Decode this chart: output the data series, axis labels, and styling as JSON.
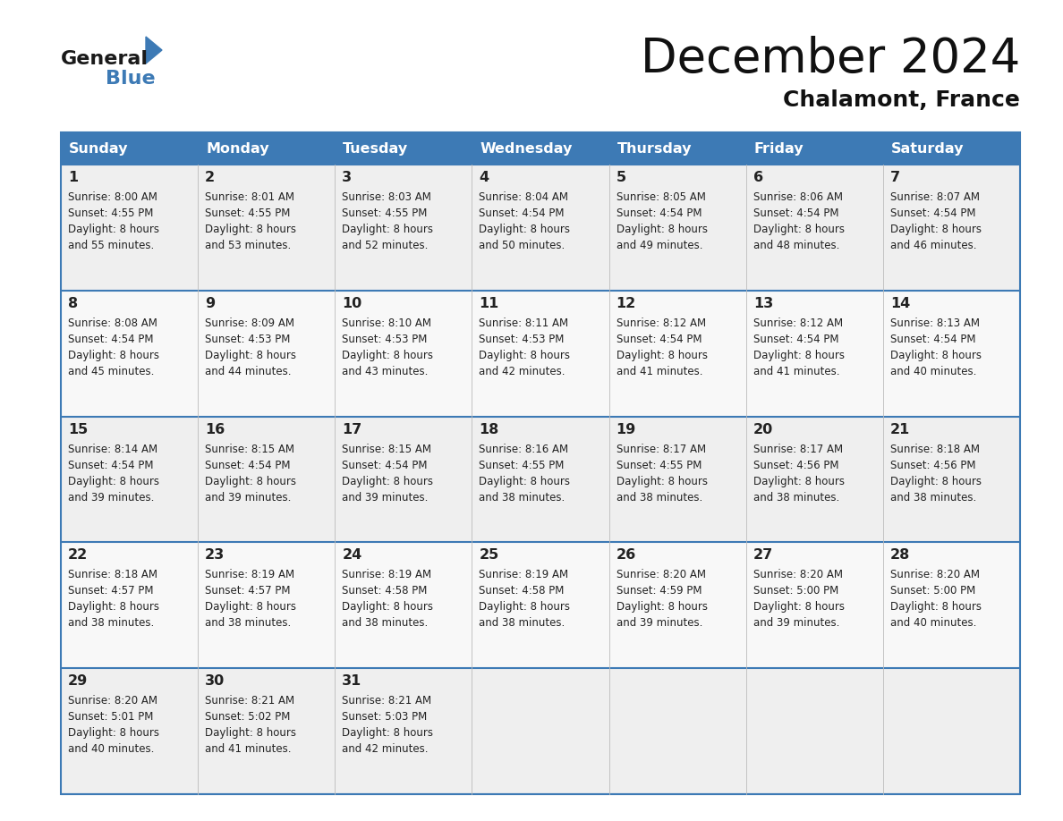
{
  "title": "December 2024",
  "subtitle": "Chalamont, France",
  "header_color": "#3d7ab5",
  "header_text_color": "#ffffff",
  "days_of_week": [
    "Sunday",
    "Monday",
    "Tuesday",
    "Wednesday",
    "Thursday",
    "Friday",
    "Saturday"
  ],
  "calendar": [
    [
      {
        "day": 1,
        "sunrise": "8:00 AM",
        "sunset": "4:55 PM",
        "daylight": "8 hours and 55 minutes."
      },
      {
        "day": 2,
        "sunrise": "8:01 AM",
        "sunset": "4:55 PM",
        "daylight": "8 hours and 53 minutes."
      },
      {
        "day": 3,
        "sunrise": "8:03 AM",
        "sunset": "4:55 PM",
        "daylight": "8 hours and 52 minutes."
      },
      {
        "day": 4,
        "sunrise": "8:04 AM",
        "sunset": "4:54 PM",
        "daylight": "8 hours and 50 minutes."
      },
      {
        "day": 5,
        "sunrise": "8:05 AM",
        "sunset": "4:54 PM",
        "daylight": "8 hours and 49 minutes."
      },
      {
        "day": 6,
        "sunrise": "8:06 AM",
        "sunset": "4:54 PM",
        "daylight": "8 hours and 48 minutes."
      },
      {
        "day": 7,
        "sunrise": "8:07 AM",
        "sunset": "4:54 PM",
        "daylight": "8 hours and 46 minutes."
      }
    ],
    [
      {
        "day": 8,
        "sunrise": "8:08 AM",
        "sunset": "4:54 PM",
        "daylight": "8 hours and 45 minutes."
      },
      {
        "day": 9,
        "sunrise": "8:09 AM",
        "sunset": "4:53 PM",
        "daylight": "8 hours and 44 minutes."
      },
      {
        "day": 10,
        "sunrise": "8:10 AM",
        "sunset": "4:53 PM",
        "daylight": "8 hours and 43 minutes."
      },
      {
        "day": 11,
        "sunrise": "8:11 AM",
        "sunset": "4:53 PM",
        "daylight": "8 hours and 42 minutes."
      },
      {
        "day": 12,
        "sunrise": "8:12 AM",
        "sunset": "4:54 PM",
        "daylight": "8 hours and 41 minutes."
      },
      {
        "day": 13,
        "sunrise": "8:12 AM",
        "sunset": "4:54 PM",
        "daylight": "8 hours and 41 minutes."
      },
      {
        "day": 14,
        "sunrise": "8:13 AM",
        "sunset": "4:54 PM",
        "daylight": "8 hours and 40 minutes."
      }
    ],
    [
      {
        "day": 15,
        "sunrise": "8:14 AM",
        "sunset": "4:54 PM",
        "daylight": "8 hours and 39 minutes."
      },
      {
        "day": 16,
        "sunrise": "8:15 AM",
        "sunset": "4:54 PM",
        "daylight": "8 hours and 39 minutes."
      },
      {
        "day": 17,
        "sunrise": "8:15 AM",
        "sunset": "4:54 PM",
        "daylight": "8 hours and 39 minutes."
      },
      {
        "day": 18,
        "sunrise": "8:16 AM",
        "sunset": "4:55 PM",
        "daylight": "8 hours and 38 minutes."
      },
      {
        "day": 19,
        "sunrise": "8:17 AM",
        "sunset": "4:55 PM",
        "daylight": "8 hours and 38 minutes."
      },
      {
        "day": 20,
        "sunrise": "8:17 AM",
        "sunset": "4:56 PM",
        "daylight": "8 hours and 38 minutes."
      },
      {
        "day": 21,
        "sunrise": "8:18 AM",
        "sunset": "4:56 PM",
        "daylight": "8 hours and 38 minutes."
      }
    ],
    [
      {
        "day": 22,
        "sunrise": "8:18 AM",
        "sunset": "4:57 PM",
        "daylight": "8 hours and 38 minutes."
      },
      {
        "day": 23,
        "sunrise": "8:19 AM",
        "sunset": "4:57 PM",
        "daylight": "8 hours and 38 minutes."
      },
      {
        "day": 24,
        "sunrise": "8:19 AM",
        "sunset": "4:58 PM",
        "daylight": "8 hours and 38 minutes."
      },
      {
        "day": 25,
        "sunrise": "8:19 AM",
        "sunset": "4:58 PM",
        "daylight": "8 hours and 38 minutes."
      },
      {
        "day": 26,
        "sunrise": "8:20 AM",
        "sunset": "4:59 PM",
        "daylight": "8 hours and 39 minutes."
      },
      {
        "day": 27,
        "sunrise": "8:20 AM",
        "sunset": "5:00 PM",
        "daylight": "8 hours and 39 minutes."
      },
      {
        "day": 28,
        "sunrise": "8:20 AM",
        "sunset": "5:00 PM",
        "daylight": "8 hours and 40 minutes."
      }
    ],
    [
      {
        "day": 29,
        "sunrise": "8:20 AM",
        "sunset": "5:01 PM",
        "daylight": "8 hours and 40 minutes."
      },
      {
        "day": 30,
        "sunrise": "8:21 AM",
        "sunset": "5:02 PM",
        "daylight": "8 hours and 41 minutes."
      },
      {
        "day": 31,
        "sunrise": "8:21 AM",
        "sunset": "5:03 PM",
        "daylight": "8 hours and 42 minutes."
      },
      null,
      null,
      null,
      null
    ]
  ]
}
